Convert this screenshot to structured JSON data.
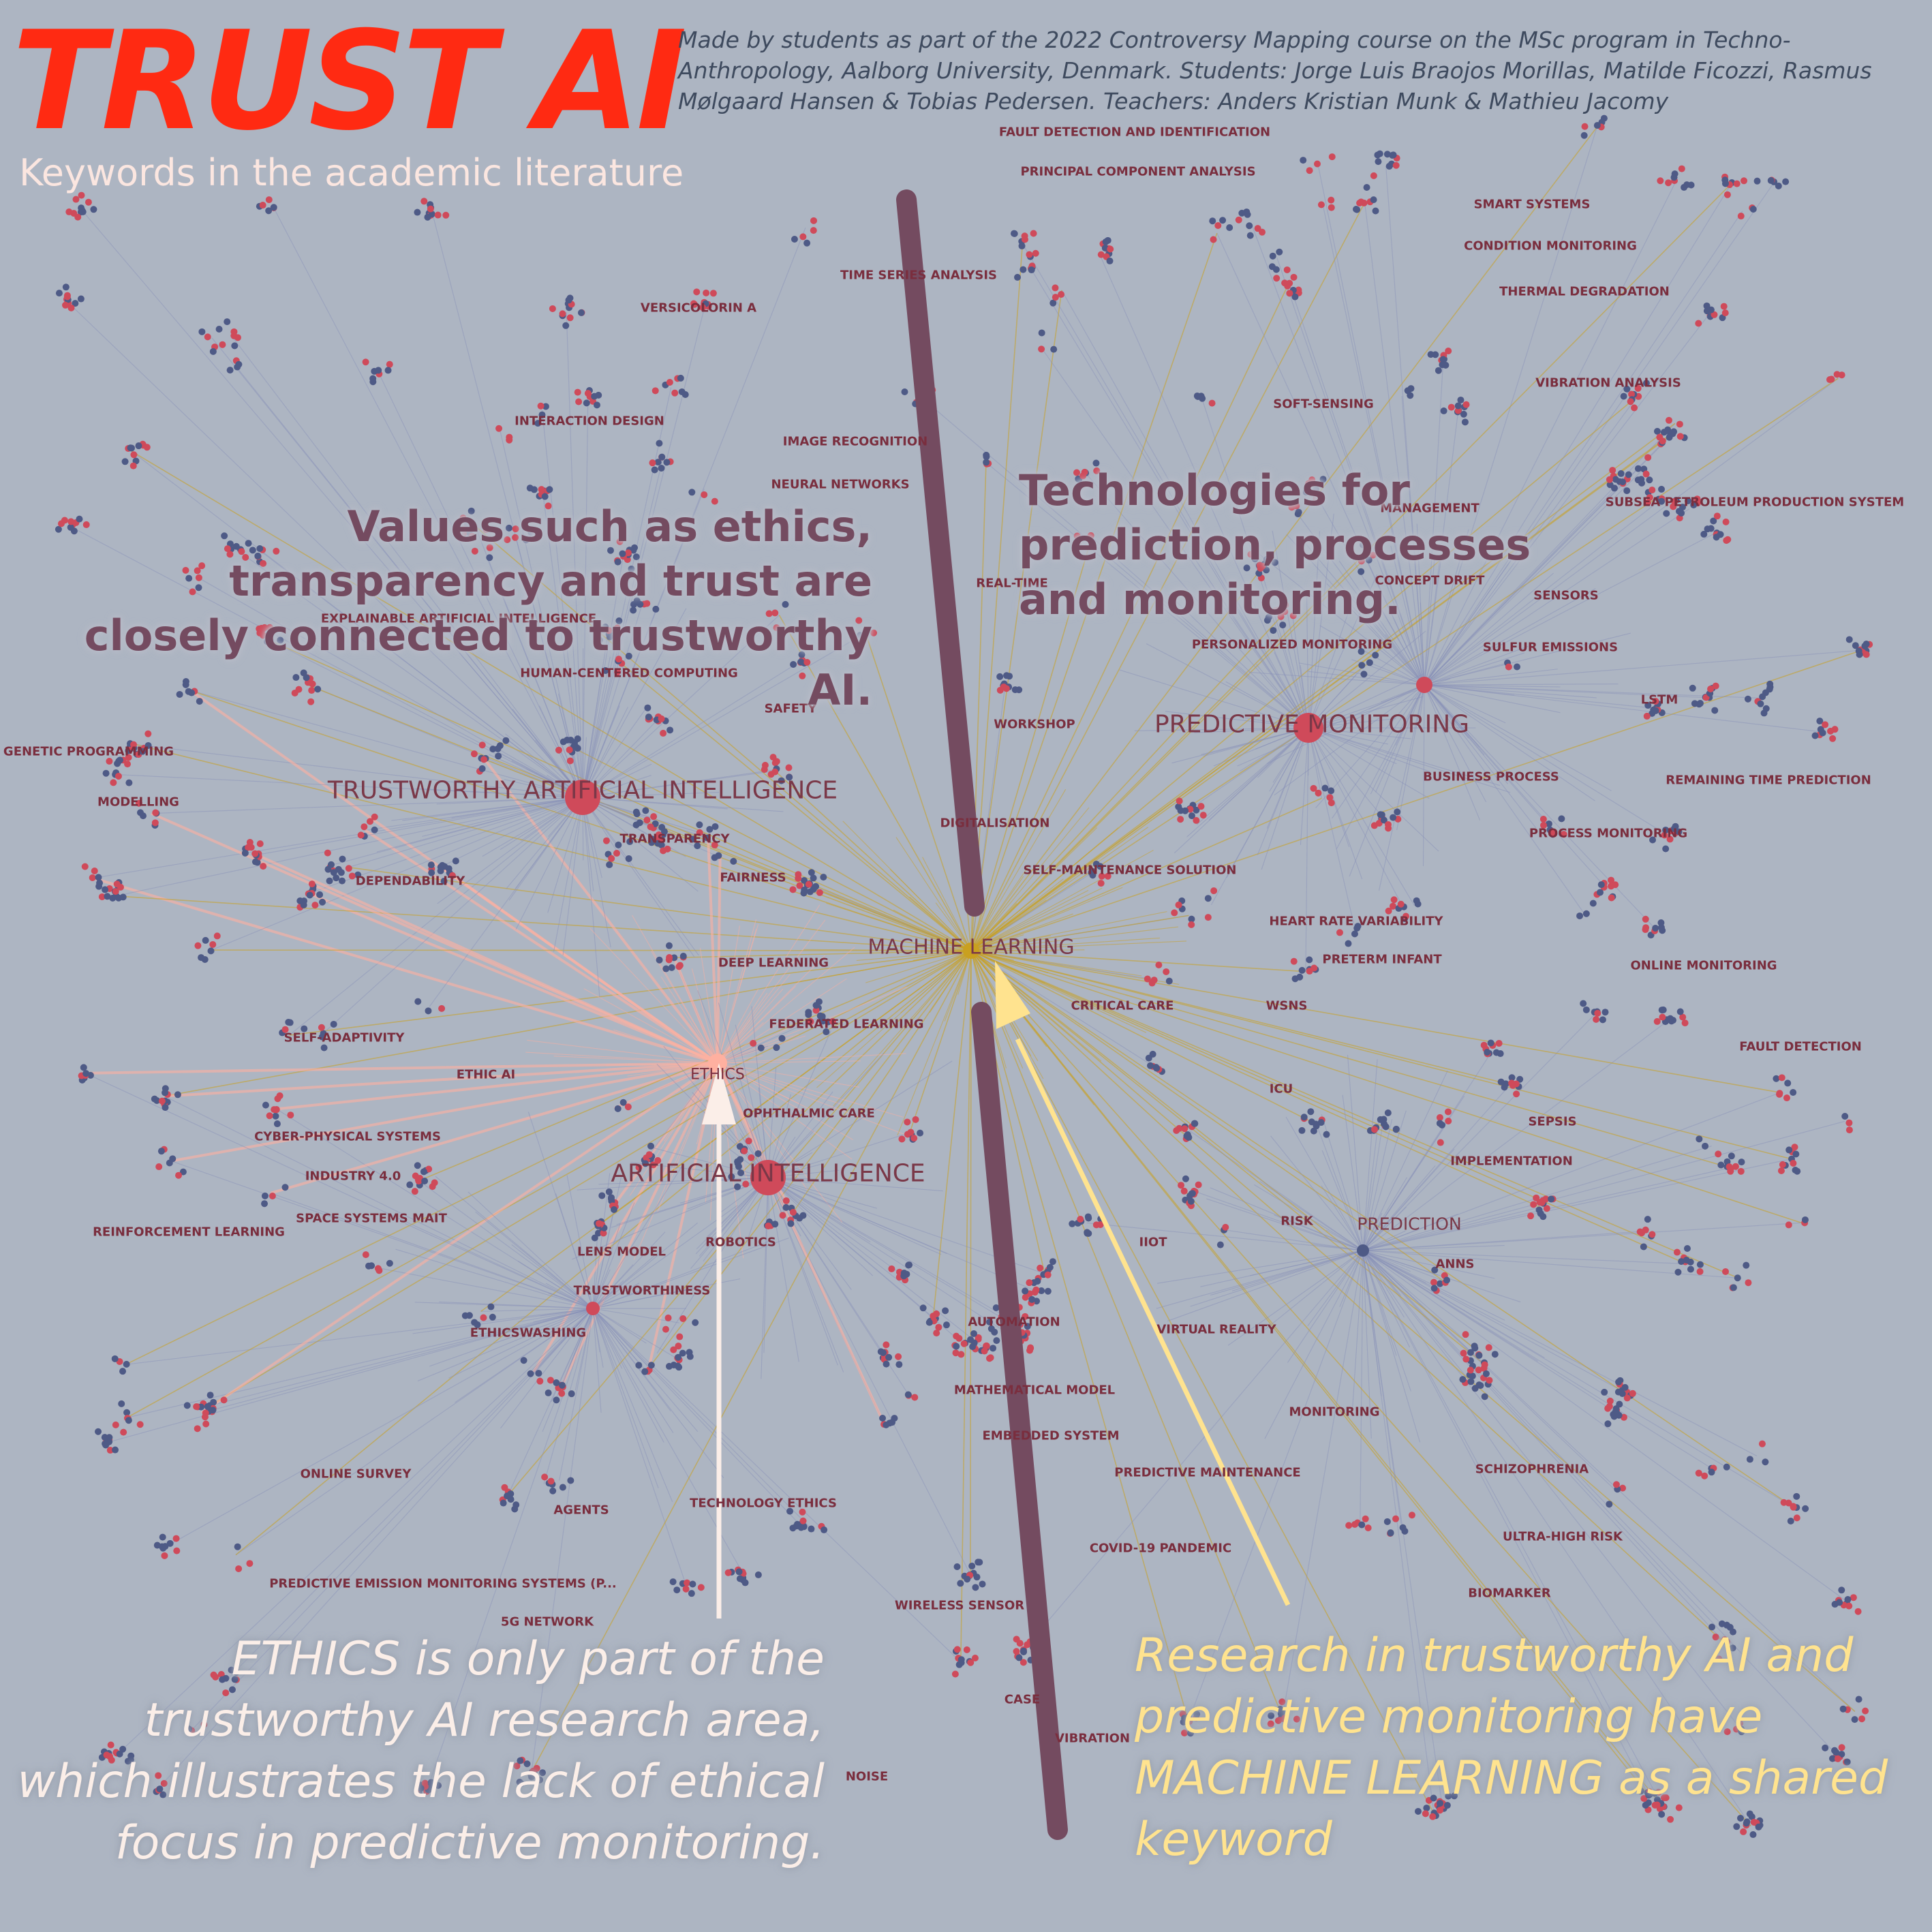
{
  "header": {
    "title": "TRUST AI",
    "subtitle": "Keywords in the academic literature",
    "credits": "Made by students as part of the 2022 Controversy Mapping course on the MSc program in Techno-Anthropology, Aalborg University, Denmark. Students: Jorge Luis Braojos Morillas, Matilde Ficozzi, Rasmus Mølgaard Hansen & Tobias Pedersen. Teachers: Anders Kristian Munk & Mathieu Jacomy"
  },
  "annotations": {
    "values": "Values such as ethics, transparency and trust are closely connected to trustworthy AI.",
    "technologies": "Technologies for prediction, processes and monitoring.",
    "ethics_note": "ETHICS is only part of the trustworthy AI research area, which illustrates the lack of ethical focus in predictive monitoring.",
    "ml_note": "Research in trustworthy AI and predictive monitoring have MACHINE LEARNING as a shared keyword"
  },
  "hub_labels": {
    "trustworthy_ai": "TRUSTWORTHY ARTIFICIAL INTELLIGENCE",
    "predictive_monitoring": "PREDICTIVE MONITORING",
    "machine_learning": "MACHINE LEARNING",
    "ethics": "ETHICS",
    "artificial_intelligence": "ARTIFICIAL INTELLIGENCE",
    "prediction": "PREDICTION"
  },
  "keywords": {
    "fault_detection_identification": "FAULT DETECTION AND IDENTIFICATION",
    "pca": "PRINCIPAL COMPONENT ANALYSIS",
    "smart_systems": "SMART SYSTEMS",
    "condition_monitoring": "CONDITION MONITORING",
    "thermal_degradation": "THERMAL DEGRADATION",
    "vibration_analysis": "VIBRATION ANALYSIS",
    "time_series_analysis": "TIME SERIES ANALYSIS",
    "versicolorin": "VERSICOLORIN A",
    "soft_sensing": "SOFT-SENSING",
    "interaction_design": "INTERACTION DESIGN",
    "image_recognition": "IMAGE RECOGNITION",
    "neural_networks": "NEURAL NETWORKS",
    "management": "MANAGEMENT",
    "subsea": "SUBSEA PETROLEUM PRODUCTION SYSTEM",
    "concept_drift": "CONCEPT DRIFT",
    "real_time": "REAL-TIME",
    "sensors": "SENSORS",
    "explainable_ai": "EXPLAINABLE ARTIFICIAL INTELLIGENCE",
    "personalized_monitoring": "PERSONALIZED MONITORING",
    "sulfur_emissions": "SULFUR EMISSIONS",
    "human_centered": "HUMAN-CENTERED COMPUTING",
    "safety": "SAFETY",
    "lstm": "LSTM",
    "workshop": "WORKSHOP",
    "genetic_programming": "GENETIC PROGRAMMING",
    "business_process": "BUSINESS PROCESS",
    "remaining_time": "REMAINING TIME PREDICTION",
    "modelling": "MODELLING",
    "digitalisation": "DIGITALISATION",
    "transparency": "TRANSPARENCY",
    "process_monitoring": "PROCESS MONITORING",
    "self_maintenance": "SELF-MAINTENANCE SOLUTION",
    "dependability": "DEPENDABILITY",
    "fairness": "FAIRNESS",
    "heart_rate": "HEART RATE VARIABILITY",
    "preterm": "PRETERM INFANT",
    "deep_learning": "DEEP LEARNING",
    "online_monitoring": "ONLINE MONITORING",
    "critical_care": "CRITICAL CARE",
    "wsns": "WSNS",
    "federated_learning": "FEDERATED LEARNING",
    "self_adaptivity": "SELF-ADAPTIVITY",
    "fault_detection": "FAULT DETECTION",
    "ethic_ai": "ETHIC AI",
    "icu": "ICU",
    "ophthalmic": "OPHTHALMIC CARE",
    "sepsis": "SEPSIS",
    "cps": "CYBER-PHYSICAL SYSTEMS",
    "implementation": "IMPLEMENTATION",
    "industry40": "INDUSTRY 4.0",
    "space_systems": "SPACE SYSTEMS MAIT",
    "risk": "RISK",
    "reinforcement": "REINFORCEMENT LEARNING",
    "iiot": "IIOT",
    "lens_model": "LENS MODEL",
    "robotics": "ROBOTICS",
    "anns": "ANNS",
    "trustworthiness": "TRUSTWORTHINESS",
    "ethicswashing": "ETHICSWASHING",
    "automation": "AUTOMATION",
    "virtual_reality": "VIRTUAL REALITY",
    "mathematical_model": "MATHEMATICAL MODEL",
    "monitoring": "MONITORING",
    "embedded_system": "EMBEDDED SYSTEM",
    "online_survey": "ONLINE SURVEY",
    "predictive_maintenance": "PREDICTIVE MAINTENANCE",
    "schizophrenia": "SCHIZOPHRENIA",
    "agents": "AGENTS",
    "technology_ethics": "TECHNOLOGY ETHICS",
    "ultra_high_risk": "ULTRA-HIGH RISK",
    "covid": "COVID-19 PANDEMIC",
    "pems": "PREDICTIVE EMISSION MONITORING SYSTEMS (P...",
    "biomarker": "BIOMARKER",
    "g5": "5G NETWORK",
    "wireless_sensor": "WIRELESS SENSOR",
    "case": "CASE",
    "vibration": "VIBRATION",
    "noise": "NOISE"
  },
  "colors": {
    "background": "#adb5c2",
    "title": "#ff2a12",
    "node_red": "#cf4a5a",
    "node_blue": "#4e5a86",
    "edge": "#8890b8",
    "edge_ml": "#c9a020",
    "edge_ethics": "#ffb0a0",
    "divider": "#744b60",
    "arrow_ethics": "#fbeee8",
    "arrow_ml": "#ffe38f"
  }
}
